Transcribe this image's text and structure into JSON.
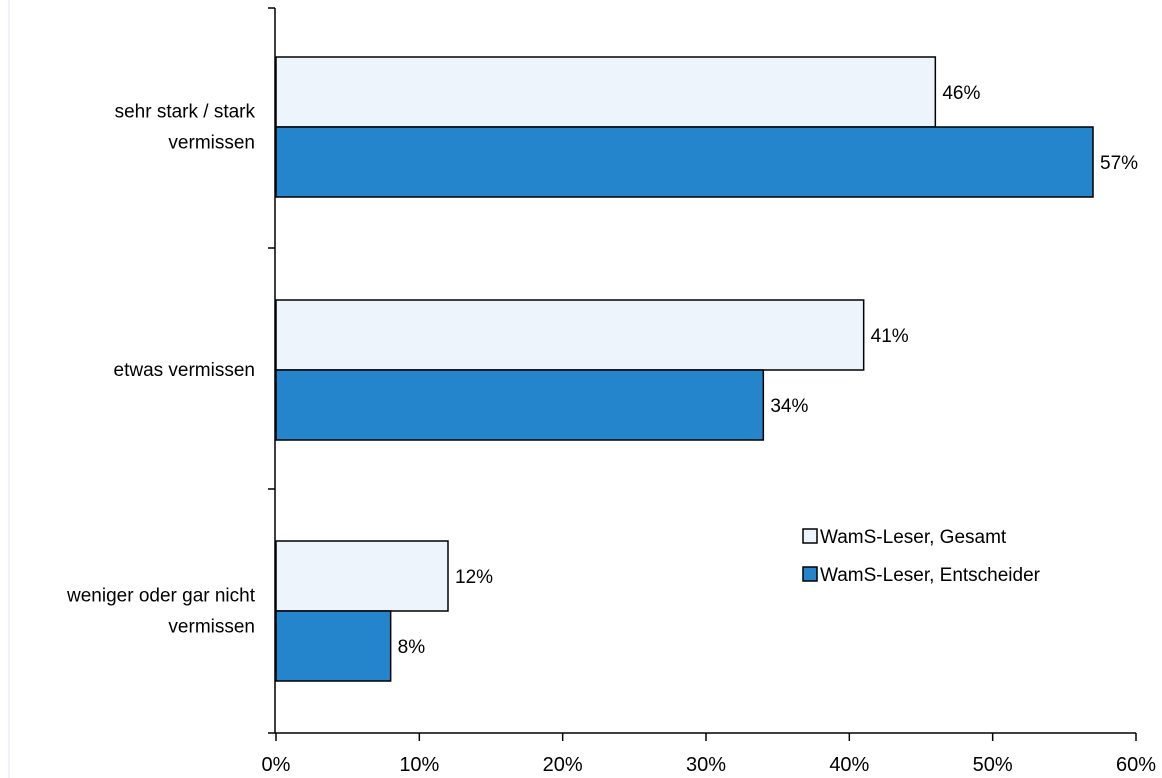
{
  "chart_data": {
    "type": "bar",
    "orientation": "horizontal",
    "categories": [
      [
        "sehr stark / stark",
        "vermissen"
      ],
      [
        "etwas vermissen"
      ],
      [
        "weniger oder gar nicht",
        "vermissen"
      ]
    ],
    "series": [
      {
        "name": "WamS-Leser, Gesamt",
        "values": [
          46,
          41,
          12
        ],
        "labels": [
          "46%",
          "41%",
          "12%"
        ],
        "color": "#eef4fc"
      },
      {
        "name": "WamS-Leser, Entscheider",
        "values": [
          57,
          34,
          8
        ],
        "labels": [
          "57%",
          "34%",
          "8%"
        ],
        "color": "#2484cc"
      }
    ],
    "xlim": [
      0,
      60
    ],
    "xticks": [
      0,
      10,
      20,
      30,
      40,
      50,
      60
    ],
    "xtick_labels": [
      "0%",
      "10%",
      "20%",
      "30%",
      "40%",
      "50%",
      "60%"
    ],
    "grid": false,
    "legend_position": "right-center"
  }
}
